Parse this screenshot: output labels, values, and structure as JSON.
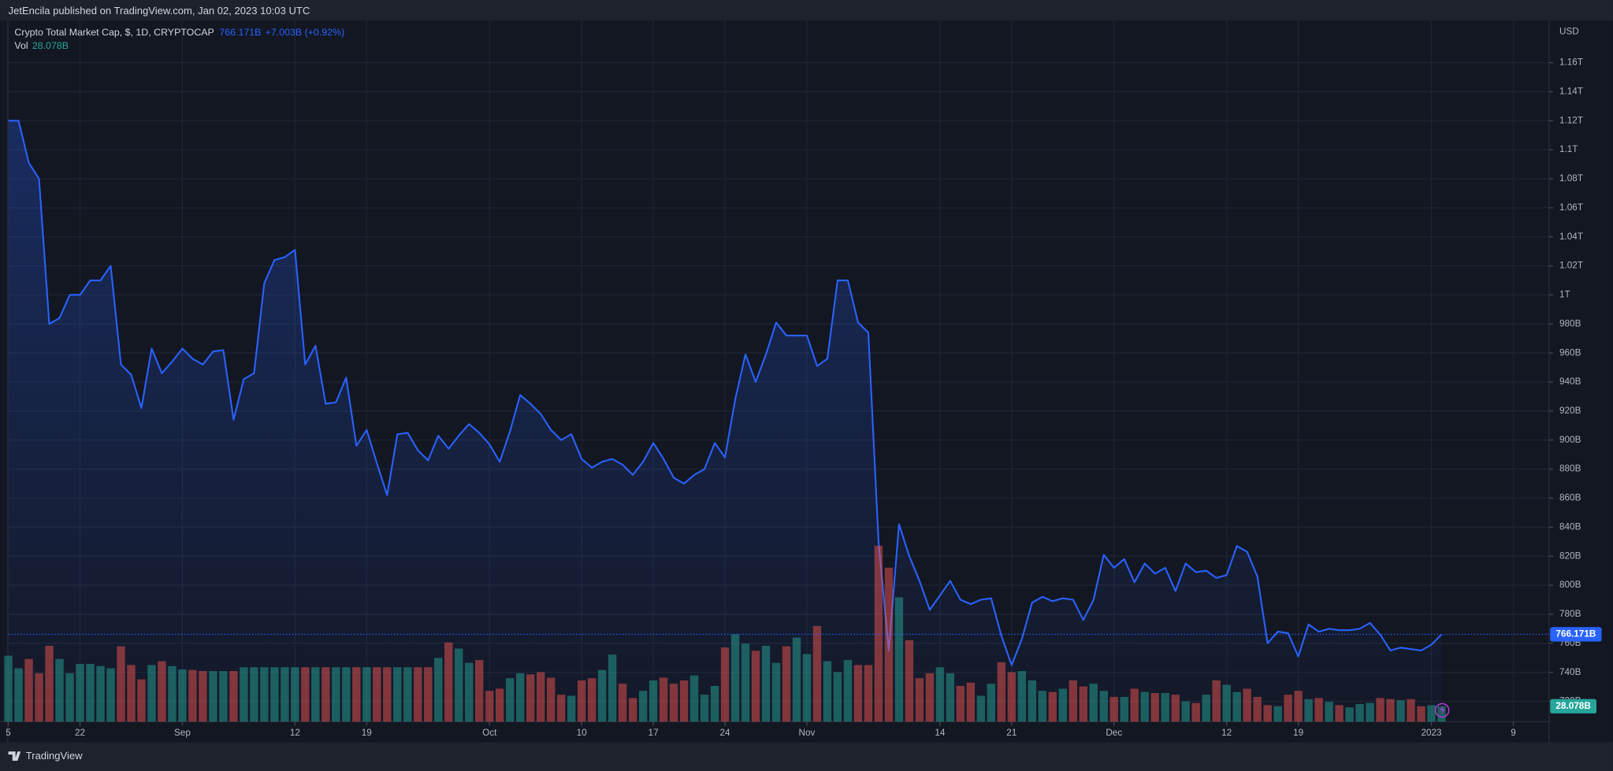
{
  "header": "JetEncila published on TradingView.com, Jan 02, 2023 10:03 UTC",
  "footer": "TradingView",
  "chart_data": {
    "type": "line",
    "axis_unit": "USD",
    "change": "+7.003B (+0.92%)",
    "price_label": {
      "value": 766.171,
      "label": "766.171B"
    },
    "volume_label": {
      "value": 28.078,
      "label": "28.078B"
    },
    "xlim": [
      0,
      150.5
    ],
    "xticks": [
      {
        "value": 0,
        "label": "5"
      },
      {
        "value": 7,
        "label": "22"
      },
      {
        "value": 17,
        "label": "Sep"
      },
      {
        "value": 28,
        "label": "12"
      },
      {
        "value": 35,
        "label": "19"
      },
      {
        "value": 47,
        "label": "Oct"
      },
      {
        "value": 56,
        "label": "10"
      },
      {
        "value": 63,
        "label": "17"
      },
      {
        "value": 70,
        "label": "24"
      },
      {
        "value": 78,
        "label": "Nov"
      },
      {
        "value": 91,
        "label": "14"
      },
      {
        "value": 98,
        "label": "21"
      },
      {
        "value": 108,
        "label": "Dec"
      },
      {
        "value": 119,
        "label": "12"
      },
      {
        "value": 126,
        "label": "19"
      },
      {
        "value": 139,
        "label": "2023"
      },
      {
        "value": 147,
        "label": "9"
      }
    ],
    "ylim": [
      706,
      1189
    ],
    "yticks": [
      {
        "value": 1160,
        "label": "1.16T"
      },
      {
        "value": 1140,
        "label": "1.14T"
      },
      {
        "value": 1120,
        "label": "1.12T"
      },
      {
        "value": 1100,
        "label": "1.1T"
      },
      {
        "value": 1080,
        "label": "1.08T"
      },
      {
        "value": 1060,
        "label": "1.06T"
      },
      {
        "value": 1040,
        "label": "1.04T"
      },
      {
        "value": 1020,
        "label": "1.02T"
      },
      {
        "value": 1000,
        "label": "1T"
      },
      {
        "value": 980,
        "label": "980B"
      },
      {
        "value": 960,
        "label": "960B"
      },
      {
        "value": 940,
        "label": "940B"
      },
      {
        "value": 920,
        "label": "920B"
      },
      {
        "value": 900,
        "label": "900B"
      },
      {
        "value": 880,
        "label": "880B"
      },
      {
        "value": 860,
        "label": "860B"
      },
      {
        "value": 840,
        "label": "840B"
      },
      {
        "value": 820,
        "label": "820B"
      },
      {
        "value": 800,
        "label": "800B"
      },
      {
        "value": 780,
        "label": "780B"
      },
      {
        "value": 760,
        "label": "760B"
      },
      {
        "value": 740,
        "label": "740B"
      },
      {
        "value": 720,
        "label": "720B"
      }
    ],
    "y2lim": [
      0,
      1275
    ],
    "grid": true,
    "series": [
      {
        "name": "Crypto Total Market Cap, $, 1D, CRYPTOCAP",
        "color": "#2962ff",
        "values": [
          1120,
          1120,
          1091,
          1080,
          980,
          984,
          1000,
          1000,
          1010,
          1010,
          1020,
          952,
          945,
          922,
          963,
          946,
          954,
          963,
          956,
          952,
          961,
          962,
          914,
          942,
          946,
          1008,
          1024,
          1026,
          1031,
          952,
          965,
          925,
          926,
          943,
          896,
          907,
          884,
          862,
          904,
          905,
          893,
          886,
          903,
          894,
          903,
          911,
          905,
          897,
          885,
          906,
          931,
          925,
          918,
          907,
          900,
          904,
          887,
          881,
          885,
          887,
          883,
          876,
          885,
          898,
          887,
          874,
          870,
          876,
          880,
          898,
          888,
          928,
          959,
          940,
          959,
          981,
          972,
          972,
          972,
          951,
          956,
          1010,
          1010,
          981,
          974,
          830,
          755,
          842,
          820,
          803,
          783,
          793,
          803,
          790,
          787,
          790,
          791,
          765,
          745,
          763,
          788,
          792,
          789,
          791,
          790,
          776,
          790,
          821,
          812,
          818,
          802,
          815,
          808,
          812,
          796,
          815,
          809,
          810,
          805,
          807,
          827,
          823,
          806,
          760,
          768,
          767,
          751,
          773,
          768,
          770,
          769,
          769,
          770,
          774,
          766,
          755,
          757,
          756,
          755,
          759,
          766.171
        ]
      },
      {
        "name": "Vol",
        "type": "bar",
        "axis": "y2",
        "color": "#26a69a",
        "down_color": "#ef5350",
        "values": [
          120,
          97,
          114,
          88,
          138,
          114,
          88,
          105,
          105,
          101,
          97,
          137,
          103,
          77,
          103,
          110,
          101,
          95,
          94,
          92,
          92,
          92,
          92,
          99,
          99,
          99,
          99,
          99,
          99,
          99,
          99,
          99,
          99,
          99,
          99,
          99,
          99,
          99,
          99,
          99,
          99,
          99,
          116,
          144,
          133,
          107,
          112,
          56,
          60,
          79,
          88,
          86,
          90,
          80,
          49,
          47,
          75,
          79,
          94,
          122,
          69,
          43,
          56,
          75,
          80,
          69,
          75,
          84,
          49,
          65,
          135,
          159,
          142,
          129,
          138,
          107,
          137,
          153,
          123,
          174,
          110,
          90,
          112,
          103,
          103,
          320,
          280,
          226,
          148,
          79,
          88,
          99,
          88,
          65,
          71,
          47,
          69,
          108,
          90,
          92,
          75,
          56,
          54,
          60,
          75,
          64,
          69,
          56,
          45,
          45,
          60,
          54,
          52,
          52,
          49,
          37,
          34,
          49,
          75,
          67,
          54,
          60,
          45,
          30,
          28,
          49,
          56,
          41,
          43,
          36,
          30,
          26,
          32,
          34,
          43,
          41,
          39,
          41,
          28,
          30,
          28.078
        ]
      }
    ]
  }
}
